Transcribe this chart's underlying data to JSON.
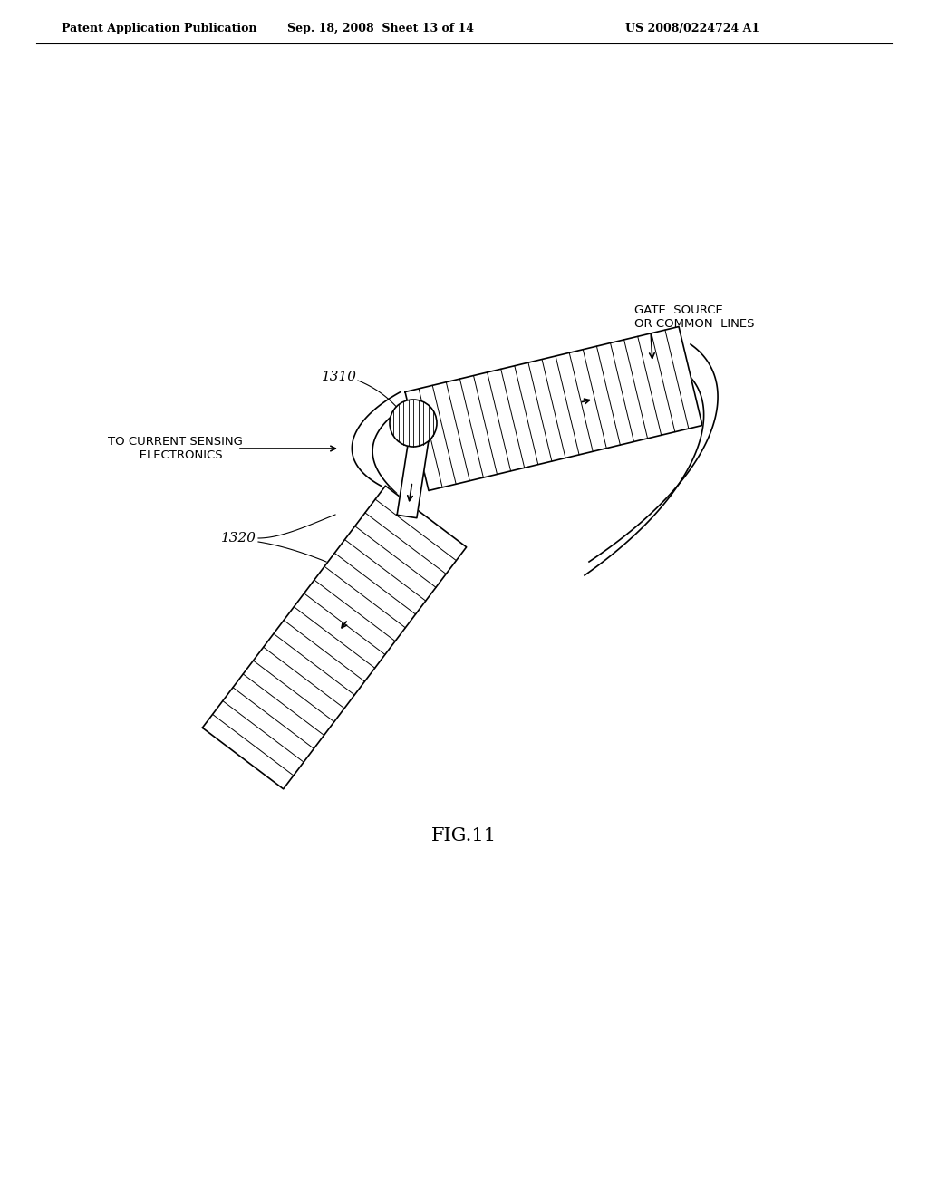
{
  "header_left": "Patent Application Publication",
  "header_mid": "Sep. 18, 2008  Sheet 13 of 14",
  "header_right": "US 2008/0224724 A1",
  "fig_caption": "FIG.11",
  "label_1310": "1310",
  "label_1320": "1320",
  "label_gate": "GATE  SOURCE\nOR COMMON  LINES",
  "label_current": "TO CURRENT SENSING\n   ELECTRONICS",
  "bg_color": "#ffffff",
  "line_color": "#000000"
}
